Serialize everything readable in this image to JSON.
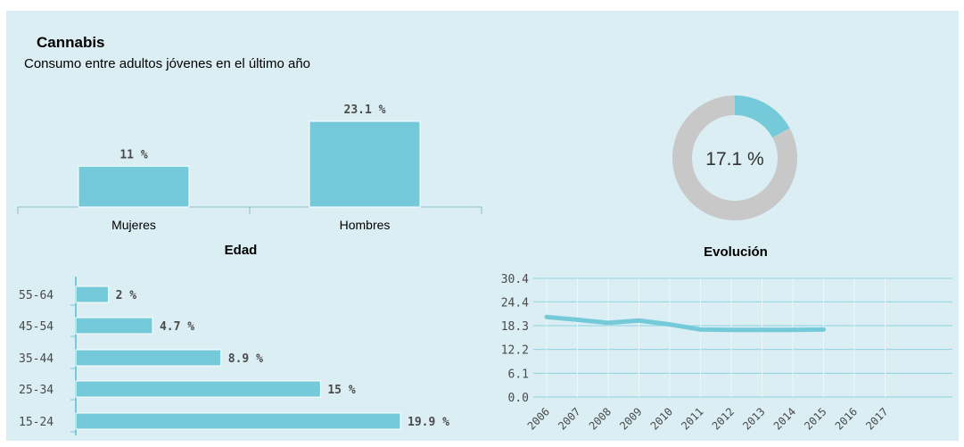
{
  "header": {
    "title": "Cannabis",
    "subtitle": "Consumo entre adultos jóvenes en el último año"
  },
  "chart_data": [
    {
      "id": "sex",
      "type": "bar",
      "categories": [
        "Mujeres",
        "Hombres"
      ],
      "values": [
        11,
        23.1
      ],
      "value_labels": [
        "11 %",
        "23.1 %"
      ],
      "title": "",
      "ylim": [
        0,
        25
      ]
    },
    {
      "id": "total",
      "type": "pie",
      "values": [
        17.1,
        82.9
      ],
      "center_label": "17.1 %",
      "colors": [
        "#74cad8",
        "#c8c8c8"
      ]
    },
    {
      "id": "age",
      "type": "bar",
      "orientation": "horizontal",
      "title": "Edad",
      "categories": [
        "55-64",
        "45-54",
        "35-44",
        "25-34",
        "15-24"
      ],
      "values": [
        2,
        4.7,
        8.9,
        15,
        19.9
      ],
      "value_labels": [
        "2 %",
        "4.7 %",
        "8.9 %",
        "15 %",
        "19.9 %"
      ],
      "xlim": [
        0,
        20.6
      ]
    },
    {
      "id": "evolution",
      "type": "line",
      "title": "Evolución",
      "x": [
        "2006",
        "2007",
        "2008",
        "2009",
        "2010",
        "2011",
        "2012",
        "2013",
        "2014",
        "2015",
        "2016",
        "2017"
      ],
      "series": [
        {
          "values": [
            20.5,
            19.8,
            19.0,
            19.6,
            18.6,
            17.3,
            17.2,
            17.2,
            17.2,
            17.3,
            null,
            null
          ]
        }
      ],
      "y_ticks": [
        "30.4",
        "24.4",
        "18.3",
        "12.2",
        "6.1",
        "0.0"
      ],
      "ylim": [
        0,
        30.4
      ]
    }
  ],
  "colors": {
    "bar": "#74cad8",
    "bar_stroke": "#ffffff",
    "donut_rest": "#c8c8c8",
    "grid": "#8dd3df",
    "axis": "#8bbfc9",
    "label_text": "#4a4a4a"
  }
}
